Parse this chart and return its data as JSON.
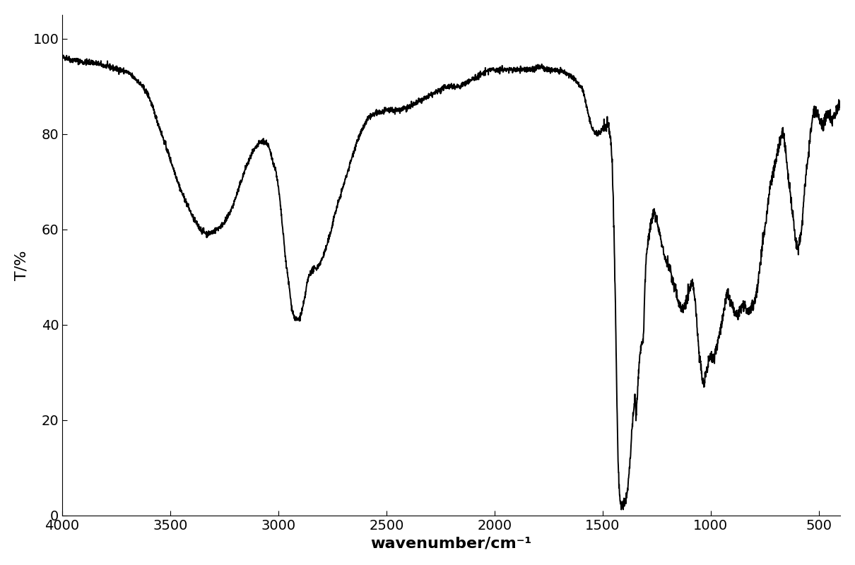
{
  "title": "",
  "xlabel": "wavenumber/cm⁻¹",
  "ylabel": "T/%",
  "xlim": [
    4000,
    400
  ],
  "ylim": [
    0,
    105
  ],
  "yticks": [
    0,
    20,
    40,
    60,
    80,
    100
  ],
  "xticks": [
    4000,
    3500,
    3000,
    2500,
    2000,
    1500,
    1000,
    500
  ],
  "line_color": "#000000",
  "line_width": 1.4,
  "background_color": "#ffffff",
  "xlabel_fontsize": 16,
  "ylabel_fontsize": 16,
  "tick_fontsize": 14,
  "spectrum_points": [
    [
      4000,
      96
    ],
    [
      3980,
      96
    ],
    [
      3960,
      95.5
    ],
    [
      3940,
      95.5
    ],
    [
      3900,
      95
    ],
    [
      3860,
      95
    ],
    [
      3820,
      94.5
    ],
    [
      3780,
      94
    ],
    [
      3740,
      93.5
    ],
    [
      3700,
      93
    ],
    [
      3660,
      91.5
    ],
    [
      3630,
      90
    ],
    [
      3600,
      88
    ],
    [
      3570,
      84
    ],
    [
      3540,
      80
    ],
    [
      3510,
      76
    ],
    [
      3480,
      72
    ],
    [
      3450,
      68
    ],
    [
      3420,
      65
    ],
    [
      3390,
      62
    ],
    [
      3360,
      60
    ],
    [
      3330,
      59
    ],
    [
      3300,
      59.5
    ],
    [
      3270,
      60.5
    ],
    [
      3240,
      62
    ],
    [
      3210,
      65
    ],
    [
      3180,
      69
    ],
    [
      3150,
      73
    ],
    [
      3120,
      76
    ],
    [
      3090,
      78
    ],
    [
      3070,
      78.5
    ],
    [
      3050,
      78
    ],
    [
      3030,
      75
    ],
    [
      3010,
      72
    ],
    [
      2995,
      67
    ],
    [
      2980,
      60
    ],
    [
      2965,
      53
    ],
    [
      2950,
      48
    ],
    [
      2940,
      44
    ],
    [
      2930,
      42
    ],
    [
      2920,
      41
    ],
    [
      2910,
      41
    ],
    [
      2900,
      41.5
    ],
    [
      2890,
      43
    ],
    [
      2880,
      45
    ],
    [
      2870,
      48
    ],
    [
      2860,
      50
    ],
    [
      2850,
      51
    ],
    [
      2840,
      51.5
    ],
    [
      2820,
      52
    ],
    [
      2800,
      53.5
    ],
    [
      2780,
      56
    ],
    [
      2760,
      59
    ],
    [
      2740,
      63
    ],
    [
      2720,
      66
    ],
    [
      2700,
      69
    ],
    [
      2680,
      72
    ],
    [
      2660,
      75
    ],
    [
      2640,
      78
    ],
    [
      2620,
      80
    ],
    [
      2600,
      82
    ],
    [
      2580,
      83.5
    ],
    [
      2560,
      84
    ],
    [
      2540,
      84.5
    ],
    [
      2520,
      84.5
    ],
    [
      2500,
      85
    ],
    [
      2480,
      85
    ],
    [
      2460,
      85
    ],
    [
      2440,
      85
    ],
    [
      2420,
      85.5
    ],
    [
      2400,
      85.5
    ],
    [
      2380,
      86
    ],
    [
      2360,
      86.5
    ],
    [
      2340,
      87
    ],
    [
      2320,
      87.5
    ],
    [
      2300,
      88
    ],
    [
      2280,
      88.5
    ],
    [
      2260,
      89
    ],
    [
      2240,
      89.5
    ],
    [
      2220,
      90
    ],
    [
      2200,
      90
    ],
    [
      2180,
      90
    ],
    [
      2160,
      90
    ],
    [
      2140,
      90.5
    ],
    [
      2120,
      91
    ],
    [
      2100,
      91.5
    ],
    [
      2080,
      92
    ],
    [
      2060,
      92.5
    ],
    [
      2040,
      93
    ],
    [
      2020,
      93.5
    ],
    [
      2000,
      93.5
    ],
    [
      1980,
      93.5
    ],
    [
      1960,
      93.5
    ],
    [
      1940,
      93.5
    ],
    [
      1920,
      93.5
    ],
    [
      1900,
      93.5
    ],
    [
      1880,
      93.5
    ],
    [
      1860,
      93.5
    ],
    [
      1840,
      93.5
    ],
    [
      1820,
      93.5
    ],
    [
      1800,
      94
    ],
    [
      1780,
      94
    ],
    [
      1760,
      93.5
    ],
    [
      1740,
      93.5
    ],
    [
      1720,
      93.5
    ],
    [
      1700,
      93
    ],
    [
      1680,
      93
    ],
    [
      1660,
      92.5
    ],
    [
      1640,
      92
    ],
    [
      1620,
      91
    ],
    [
      1610,
      90.5
    ],
    [
      1600,
      90
    ],
    [
      1590,
      89
    ],
    [
      1580,
      87
    ],
    [
      1570,
      85
    ],
    [
      1560,
      83
    ],
    [
      1550,
      81.5
    ],
    [
      1540,
      80.5
    ],
    [
      1530,
      80
    ],
    [
      1520,
      80
    ],
    [
      1510,
      80.5
    ],
    [
      1500,
      81
    ],
    [
      1490,
      81.5
    ],
    [
      1480,
      82
    ],
    [
      1470,
      81
    ],
    [
      1460,
      78
    ],
    [
      1455,
      73
    ],
    [
      1450,
      65
    ],
    [
      1445,
      55
    ],
    [
      1440,
      43
    ],
    [
      1435,
      28
    ],
    [
      1430,
      15
    ],
    [
      1425,
      7
    ],
    [
      1420,
      3
    ],
    [
      1415,
      2
    ],
    [
      1410,
      2
    ],
    [
      1405,
      2.5
    ],
    [
      1400,
      3
    ],
    [
      1395,
      3.5
    ],
    [
      1390,
      4
    ],
    [
      1385,
      5
    ],
    [
      1380,
      7
    ],
    [
      1375,
      10
    ],
    [
      1370,
      13
    ],
    [
      1365,
      17
    ],
    [
      1360,
      20
    ],
    [
      1355,
      23
    ],
    [
      1350,
      25
    ],
    [
      1348,
      23
    ],
    [
      1345,
      20
    ],
    [
      1342,
      23
    ],
    [
      1338,
      26
    ],
    [
      1335,
      29
    ],
    [
      1330,
      32
    ],
    [
      1325,
      35
    ],
    [
      1320,
      36
    ],
    [
      1315,
      36
    ],
    [
      1310,
      38
    ],
    [
      1308,
      42
    ],
    [
      1305,
      47
    ],
    [
      1300,
      52
    ],
    [
      1295,
      55
    ],
    [
      1290,
      57
    ],
    [
      1285,
      59
    ],
    [
      1280,
      60
    ],
    [
      1275,
      61
    ],
    [
      1270,
      62
    ],
    [
      1265,
      63
    ],
    [
      1260,
      63.5
    ],
    [
      1255,
      63
    ],
    [
      1250,
      62
    ],
    [
      1245,
      61
    ],
    [
      1240,
      60
    ],
    [
      1235,
      59
    ],
    [
      1230,
      58
    ],
    [
      1225,
      57
    ],
    [
      1220,
      56
    ],
    [
      1215,
      55
    ],
    [
      1210,
      54
    ],
    [
      1200,
      53
    ],
    [
      1190,
      52
    ],
    [
      1180,
      50
    ],
    [
      1170,
      48
    ],
    [
      1160,
      47
    ],
    [
      1155,
      46
    ],
    [
      1150,
      45
    ],
    [
      1145,
      44
    ],
    [
      1140,
      44
    ],
    [
      1135,
      43
    ],
    [
      1130,
      43.5
    ],
    [
      1125,
      44
    ],
    [
      1120,
      44.5
    ],
    [
      1115,
      45
    ],
    [
      1110,
      45.5
    ],
    [
      1105,
      46
    ],
    [
      1100,
      47
    ],
    [
      1095,
      48
    ],
    [
      1090,
      48.5
    ],
    [
      1085,
      48.5
    ],
    [
      1080,
      48
    ],
    [
      1075,
      46
    ],
    [
      1070,
      44
    ],
    [
      1065,
      41
    ],
    [
      1060,
      38
    ],
    [
      1055,
      35
    ],
    [
      1050,
      33
    ],
    [
      1045,
      31
    ],
    [
      1040,
      29
    ],
    [
      1035,
      28
    ],
    [
      1030,
      28
    ],
    [
      1025,
      29
    ],
    [
      1020,
      30
    ],
    [
      1015,
      31
    ],
    [
      1010,
      32
    ],
    [
      1005,
      33
    ],
    [
      1000,
      34
    ],
    [
      995,
      33
    ],
    [
      990,
      33
    ],
    [
      985,
      33
    ],
    [
      980,
      34
    ],
    [
      975,
      35
    ],
    [
      970,
      36
    ],
    [
      965,
      37
    ],
    [
      960,
      38
    ],
    [
      955,
      39
    ],
    [
      950,
      40
    ],
    [
      945,
      41
    ],
    [
      940,
      43
    ],
    [
      935,
      44
    ],
    [
      930,
      45
    ],
    [
      925,
      46
    ],
    [
      920,
      47
    ],
    [
      915,
      46
    ],
    [
      910,
      45
    ],
    [
      905,
      44.5
    ],
    [
      900,
      44
    ],
    [
      895,
      43.5
    ],
    [
      890,
      43
    ],
    [
      885,
      42.5
    ],
    [
      880,
      42
    ],
    [
      875,
      42
    ],
    [
      870,
      42.5
    ],
    [
      865,
      43
    ],
    [
      860,
      43.5
    ],
    [
      855,
      44
    ],
    [
      850,
      44.5
    ],
    [
      845,
      44.5
    ],
    [
      840,
      44
    ],
    [
      835,
      43.5
    ],
    [
      830,
      43
    ],
    [
      825,
      43
    ],
    [
      820,
      43
    ],
    [
      815,
      43
    ],
    [
      810,
      43.5
    ],
    [
      805,
      44
    ],
    [
      800,
      44.5
    ],
    [
      795,
      45
    ],
    [
      790,
      46
    ],
    [
      785,
      47
    ],
    [
      780,
      49
    ],
    [
      775,
      51
    ],
    [
      770,
      53
    ],
    [
      765,
      55
    ],
    [
      760,
      57
    ],
    [
      755,
      58.5
    ],
    [
      750,
      60
    ],
    [
      745,
      61
    ],
    [
      740,
      63
    ],
    [
      735,
      65
    ],
    [
      730,
      67
    ],
    [
      725,
      69
    ],
    [
      720,
      70
    ],
    [
      715,
      71
    ],
    [
      710,
      72
    ],
    [
      705,
      73
    ],
    [
      700,
      74
    ],
    [
      695,
      75
    ],
    [
      690,
      76
    ],
    [
      685,
      77
    ],
    [
      680,
      78
    ],
    [
      675,
      79
    ],
    [
      670,
      80
    ],
    [
      665,
      80.5
    ],
    [
      660,
      79
    ],
    [
      655,
      77
    ],
    [
      650,
      75
    ],
    [
      645,
      73
    ],
    [
      640,
      71
    ],
    [
      635,
      69
    ],
    [
      630,
      67
    ],
    [
      625,
      65
    ],
    [
      620,
      63
    ],
    [
      615,
      61
    ],
    [
      610,
      59
    ],
    [
      605,
      57
    ],
    [
      600,
      56
    ],
    [
      595,
      56
    ],
    [
      590,
      57
    ],
    [
      585,
      58
    ],
    [
      580,
      60
    ],
    [
      575,
      62
    ],
    [
      570,
      65
    ],
    [
      565,
      68
    ],
    [
      560,
      71
    ],
    [
      555,
      73
    ],
    [
      550,
      75
    ],
    [
      545,
      77
    ],
    [
      540,
      79
    ],
    [
      535,
      81
    ],
    [
      530,
      83
    ],
    [
      525,
      84.5
    ],
    [
      520,
      85
    ],
    [
      515,
      85
    ],
    [
      510,
      84.5
    ],
    [
      505,
      84
    ],
    [
      500,
      83.5
    ],
    [
      495,
      83
    ],
    [
      490,
      82.5
    ],
    [
      485,
      82
    ],
    [
      480,
      82
    ],
    [
      475,
      82.5
    ],
    [
      470,
      83
    ],
    [
      465,
      83.5
    ],
    [
      460,
      84
    ],
    [
      455,
      84
    ],
    [
      450,
      84
    ],
    [
      445,
      83.5
    ],
    [
      440,
      83
    ],
    [
      435,
      83
    ],
    [
      430,
      83.5
    ],
    [
      425,
      84
    ],
    [
      420,
      84.5
    ],
    [
      415,
      85
    ],
    [
      410,
      85.5
    ],
    [
      405,
      86
    ],
    [
      400,
      86.5
    ]
  ]
}
